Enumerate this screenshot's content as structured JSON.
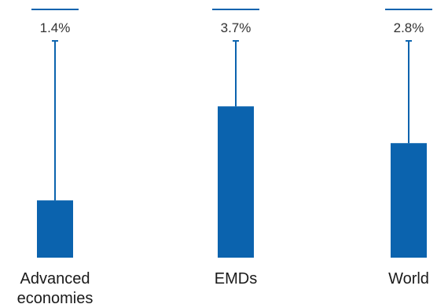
{
  "chart_data": {
    "type": "bar",
    "categories": [
      "Advanced economies",
      "EMDs",
      "World"
    ],
    "category_label_lines": [
      [
        "Advanced",
        "economies"
      ],
      [
        "EMDs"
      ],
      [
        "World"
      ]
    ],
    "values": [
      1.4,
      3.7,
      2.8
    ],
    "value_labels": [
      "1.4%",
      "3.7%",
      "2.8%"
    ],
    "error_upper": [
      5.3,
      5.3,
      5.3
    ],
    "bar_color": "#0b63ae",
    "xlabel": "",
    "ylabel": "",
    "ylim": [
      0,
      6.3
    ],
    "grid": false,
    "legend": "none"
  }
}
